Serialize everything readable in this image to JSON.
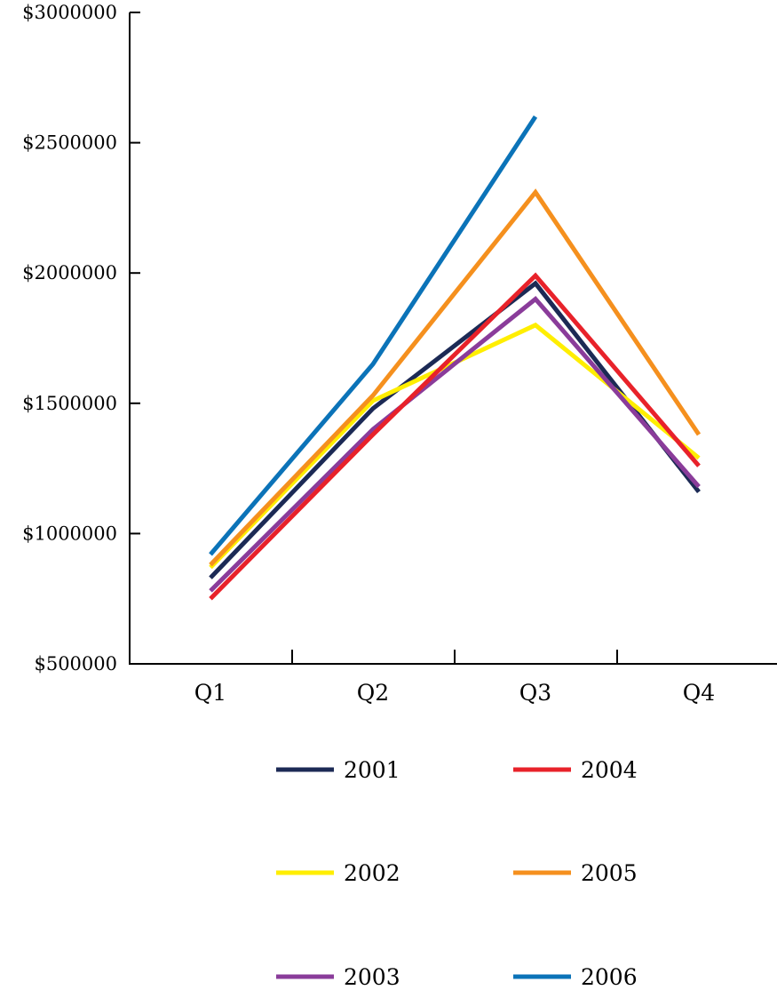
{
  "chart_data": {
    "type": "line",
    "title": "",
    "xlabel": "",
    "ylabel": "",
    "categories": [
      "Q1",
      "Q2",
      "Q3",
      "Q4"
    ],
    "ylim": [
      500000,
      3000000
    ],
    "yticks": [
      500000,
      1000000,
      1500000,
      2000000,
      2500000,
      3000000
    ],
    "ytick_labels": [
      "$500000",
      "$1000000",
      "$1500000",
      "$2000000",
      "$2500000",
      "$3000000"
    ],
    "grid": false,
    "legend_position": "bottom",
    "series": [
      {
        "name": "2001",
        "color": "#1c2a55",
        "values": [
          830000,
          1480000,
          1960000,
          1160000
        ]
      },
      {
        "name": "2002",
        "color": "#ffee00",
        "values": [
          870000,
          1510000,
          1800000,
          1290000
        ]
      },
      {
        "name": "2003",
        "color": "#8a3c9a",
        "values": [
          780000,
          1400000,
          1900000,
          1180000
        ]
      },
      {
        "name": "2004",
        "color": "#e8222a",
        "values": [
          750000,
          1380000,
          1990000,
          1260000
        ]
      },
      {
        "name": "2005",
        "color": "#f5901e",
        "values": [
          880000,
          1530000,
          2310000,
          1380000
        ]
      },
      {
        "name": "2006",
        "color": "#0b73b8",
        "values": [
          920000,
          1650000,
          2600000,
          null
        ]
      }
    ]
  }
}
